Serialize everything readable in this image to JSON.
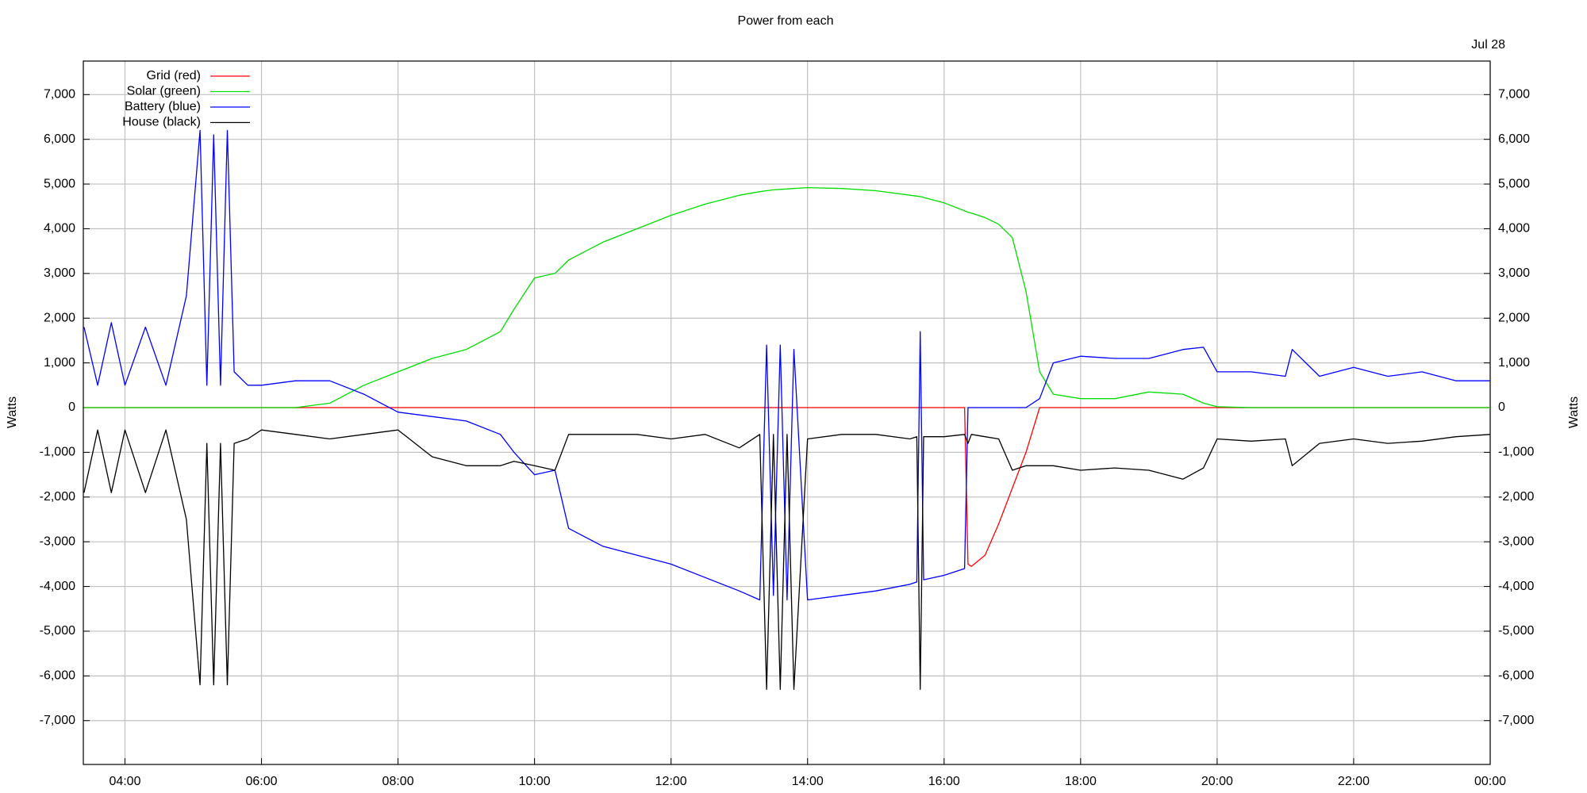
{
  "chart_data": {
    "type": "line",
    "title": "Power from each",
    "annotation": "Jul 28",
    "ylabel": "Watts",
    "y2label": "Watts",
    "grid": true,
    "legend": "upper left",
    "xlim": [
      3.39,
      24
    ],
    "ylim": [
      -7980,
      7750
    ],
    "y2lim": [
      -7980,
      7750
    ],
    "xticks": [
      {
        "value": 4,
        "label": "04:00"
      },
      {
        "value": 6,
        "label": "06:00"
      },
      {
        "value": 8,
        "label": "08:00"
      },
      {
        "value": 10,
        "label": "10:00"
      },
      {
        "value": 12,
        "label": "12:00"
      },
      {
        "value": 14,
        "label": "14:00"
      },
      {
        "value": 16,
        "label": "16:00"
      },
      {
        "value": 18,
        "label": "18:00"
      },
      {
        "value": 20,
        "label": "20:00"
      },
      {
        "value": 22,
        "label": "22:00"
      },
      {
        "value": 24,
        "label": "00:00"
      }
    ],
    "yticks": [
      {
        "value": -7000,
        "label": "-7,000"
      },
      {
        "value": -6000,
        "label": "-6,000"
      },
      {
        "value": -5000,
        "label": "-5,000"
      },
      {
        "value": -4000,
        "label": "-4,000"
      },
      {
        "value": -3000,
        "label": "-3,000"
      },
      {
        "value": -2000,
        "label": "-2,000"
      },
      {
        "value": -1000,
        "label": "-1,000"
      },
      0,
      {
        "value": 1000,
        "label": "1,000"
      },
      {
        "value": 2000,
        "label": "2,000"
      },
      {
        "value": 3000,
        "label": "3,000"
      },
      {
        "value": 4000,
        "label": "4,000"
      },
      {
        "value": 5000,
        "label": "5,000"
      },
      {
        "value": 6000,
        "label": "6,000"
      },
      {
        "value": 7000,
        "label": "7,000"
      }
    ],
    "y2ticks": [
      {
        "value": -7000,
        "label": "-7,000"
      },
      {
        "value": -6000,
        "label": "-6,000"
      },
      {
        "value": -5000,
        "label": "-5,000"
      },
      {
        "value": -4000,
        "label": "-4,000"
      },
      {
        "value": -3000,
        "label": "-3,000"
      },
      {
        "value": -2000,
        "label": "-2,000"
      },
      {
        "value": -1000,
        "label": "-1,000"
      },
      0,
      {
        "value": 1000,
        "label": "1,000"
      },
      {
        "value": 2000,
        "label": "2,000"
      },
      {
        "value": 3000,
        "label": "3,000"
      },
      {
        "value": 4000,
        "label": "4,000"
      },
      {
        "value": 5000,
        "label": "5,000"
      },
      {
        "value": 6000,
        "label": "6,000"
      },
      {
        "value": 7000,
        "label": "7,000"
      }
    ],
    "x": [
      3.4,
      3.6,
      3.8,
      4.0,
      4.3,
      4.6,
      4.9,
      5.1,
      5.2,
      5.3,
      5.4,
      5.5,
      5.6,
      5.8,
      6.0,
      6.5,
      7.0,
      7.5,
      8.0,
      8.5,
      9.0,
      9.5,
      9.7,
      10.0,
      10.3,
      10.5,
      11.0,
      11.5,
      12.0,
      12.5,
      13.0,
      13.3,
      13.4,
      13.5,
      13.6,
      13.7,
      13.8,
      14.0,
      14.5,
      15.0,
      15.5,
      15.6,
      15.65,
      15.7,
      16.0,
      16.3,
      16.35,
      16.4,
      16.6,
      16.8,
      17.0,
      17.2,
      17.4,
      17.6,
      18.0,
      18.5,
      19.0,
      19.5,
      19.8,
      20.0,
      20.5,
      21.0,
      21.1,
      21.5,
      22.0,
      22.5,
      23.0,
      23.5,
      24.0
    ],
    "series": [
      {
        "name": "Grid (red)",
        "color": "#ff0000",
        "values": [
          0,
          0,
          0,
          0,
          0,
          0,
          0,
          0,
          0,
          0,
          0,
          0,
          0,
          0,
          0,
          0,
          0,
          0,
          0,
          0,
          0,
          0,
          0,
          0,
          0,
          0,
          0,
          0,
          0,
          0,
          0,
          0,
          0,
          0,
          0,
          0,
          0,
          0,
          0,
          0,
          0,
          0,
          0,
          0,
          0,
          0,
          -3500,
          -3550,
          -3300,
          -2600,
          -1800,
          -1000,
          0,
          0,
          0,
          0,
          0,
          0,
          0,
          0,
          0,
          0,
          0,
          0,
          0,
          0,
          0,
          0,
          0
        ]
      },
      {
        "name": "Solar (green)",
        "color": "#00dd00",
        "values": [
          0,
          0,
          0,
          0,
          0,
          0,
          0,
          0,
          0,
          0,
          0,
          0,
          0,
          0,
          0,
          0,
          100,
          500,
          800,
          1100,
          1300,
          1700,
          2200,
          2900,
          3000,
          3300,
          3700,
          4000,
          4300,
          4550,
          4750,
          4830,
          4850,
          4870,
          4880,
          4890,
          4900,
          4920,
          4900,
          4850,
          4750,
          4730,
          4720,
          4700,
          4580,
          4400,
          4370,
          4350,
          4250,
          4100,
          3800,
          2600,
          800,
          300,
          200,
          200,
          350,
          300,
          100,
          20,
          0,
          0,
          0,
          0,
          0,
          0,
          0,
          0,
          0
        ]
      },
      {
        "name": "Battery (blue)",
        "color": "#0000ff",
        "values": [
          1800,
          500,
          1900,
          500,
          1800,
          500,
          2500,
          6200,
          500,
          6100,
          500,
          6200,
          800,
          500,
          500,
          600,
          600,
          300,
          -100,
          -200,
          -300,
          -600,
          -1000,
          -1500,
          -1400,
          -2700,
          -3100,
          -3300,
          -3500,
          -3800,
          -4100,
          -4300,
          1400,
          -4200,
          1400,
          -4300,
          1300,
          -4300,
          -4200,
          -4100,
          -3950,
          -3900,
          1700,
          -3850,
          -3750,
          -3600,
          0,
          0,
          0,
          0,
          0,
          0,
          200,
          1000,
          1150,
          1100,
          1100,
          1300,
          1350,
          800,
          800,
          700,
          1300,
          700,
          900,
          700,
          800,
          600,
          600
        ]
      },
      {
        "name": "House (black)",
        "color": "#000000",
        "values": [
          -1900,
          -500,
          -1900,
          -500,
          -1900,
          -500,
          -2500,
          -6200,
          -800,
          -6200,
          -800,
          -6200,
          -800,
          -700,
          -500,
          -600,
          -700,
          -600,
          -500,
          -1100,
          -1300,
          -1300,
          -1200,
          -1300,
          -1400,
          -600,
          -600,
          -600,
          -700,
          -600,
          -900,
          -600,
          -6300,
          -600,
          -6300,
          -600,
          -6300,
          -700,
          -600,
          -600,
          -700,
          -650,
          -6300,
          -650,
          -650,
          -600,
          -800,
          -600,
          -650,
          -700,
          -1400,
          -1300,
          -1300,
          -1300,
          -1400,
          -1350,
          -1400,
          -1600,
          -1350,
          -700,
          -750,
          -700,
          -1300,
          -800,
          -700,
          -800,
          -750,
          -650,
          -600
        ]
      }
    ]
  }
}
